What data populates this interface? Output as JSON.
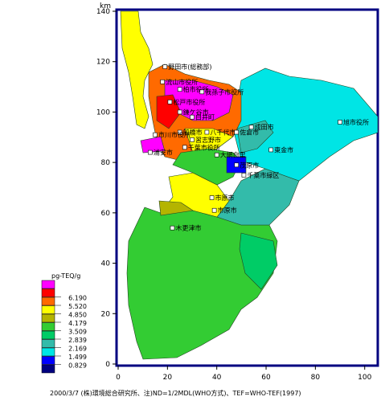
{
  "axis": {
    "y_unit": "km",
    "x_ticks": [
      "0",
      "20",
      "40",
      "60",
      "80",
      "100"
    ],
    "y_ticks": [
      "0",
      "20",
      "40",
      "60",
      "80",
      "100",
      "120",
      "140"
    ],
    "x_range": [
      0,
      104
    ],
    "y_range": [
      0,
      140
    ]
  },
  "legend": {
    "title": "pg-TEQ/g",
    "entries": [
      {
        "value": "",
        "color": "#ff00ff"
      },
      {
        "value": "6.190",
        "color": "#ff0000"
      },
      {
        "value": "5.520",
        "color": "#ff6a00"
      },
      {
        "value": "4.850",
        "color": "#ffff00"
      },
      {
        "value": "4.179",
        "color": "#b4b400"
      },
      {
        "value": "3.509",
        "color": "#33cc33"
      },
      {
        "value": "2.839",
        "color": "#00cc66"
      },
      {
        "value": "2.169",
        "color": "#33bbaa"
      },
      {
        "value": "1.499",
        "color": "#00e5e5"
      },
      {
        "value": "0.829",
        "color": "#0000ff"
      },
      {
        "value": "",
        "color": "#000080"
      }
    ]
  },
  "cities": [
    {
      "name": "野田市(総務部)",
      "x": 19,
      "y": 118
    },
    {
      "name": "流山市役所",
      "x": 18,
      "y": 112
    },
    {
      "name": "柏市役所",
      "x": 25,
      "y": 109
    },
    {
      "name": "我孫子市役所",
      "x": 34,
      "y": 108
    },
    {
      "name": "松戸市役所",
      "x": 21,
      "y": 104
    },
    {
      "name": "鎌ケ谷市",
      "x": 25,
      "y": 100
    },
    {
      "name": "白井町",
      "x": 30,
      "y": 98
    },
    {
      "name": "船橋市",
      "x": 25,
      "y": 92
    },
    {
      "name": "習志野市",
      "x": 30,
      "y": 89
    },
    {
      "name": "八千代市",
      "x": 36,
      "y": 92
    },
    {
      "name": "佐倉市",
      "x": 48,
      "y": 92
    },
    {
      "name": "成田市",
      "x": 54,
      "y": 94
    },
    {
      "name": "千葉市役所",
      "x": 27,
      "y": 86
    },
    {
      "name": "市川市役所",
      "x": 15,
      "y": 91
    },
    {
      "name": "浦安市",
      "x": 13,
      "y": 84
    },
    {
      "name": "旭市役所",
      "x": 90,
      "y": 96
    },
    {
      "name": "東金市",
      "x": 62,
      "y": 85
    },
    {
      "name": "大網白里",
      "x": 40,
      "y": 83
    },
    {
      "name": "茂原市",
      "x": 48,
      "y": 79
    },
    {
      "name": "千葉市緑区",
      "x": 51,
      "y": 75
    },
    {
      "name": "市原市",
      "x": 38,
      "y": 66
    },
    {
      "name": "市原市",
      "x": 39,
      "y": 61
    },
    {
      "name": "木更津市",
      "x": 22,
      "y": 54
    }
  ],
  "footnote": "2000/3/7 (株)環境総合研究所、注)ND=1/2MDL(WHO方式)、TEF=WHO-TEF(1997)"
}
